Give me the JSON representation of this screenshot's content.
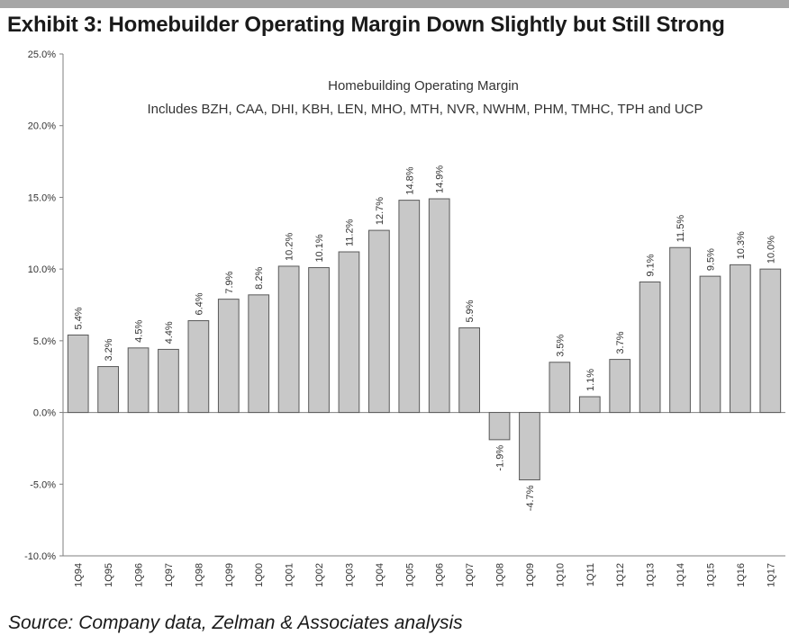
{
  "exhibit_title": "Exhibit 3: Homebuilder Operating Margin Down Slightly but Still Strong",
  "source_note": "Source: Company data, Zelman & Associates analysis",
  "colors": {
    "bar_fill": "#c8c8c8",
    "bar_stroke": "#595959",
    "top_band": "#a6a6a6"
  },
  "chart_data": {
    "type": "bar",
    "title": "Homebuilding Operating Margin",
    "subtitle": "Includes BZH, CAA, DHI, KBH, LEN, MHO, MTH, NVR, NWHM, PHM, TMHC, TPH and UCP",
    "xlabel": "",
    "ylabel": "",
    "ylim": [
      -10,
      25
    ],
    "yticks": [
      -10,
      -5,
      0,
      5,
      10,
      15,
      20,
      25
    ],
    "ytick_labels": [
      "-10.0%",
      "-5.0%",
      "0.0%",
      "5.0%",
      "10.0%",
      "15.0%",
      "20.0%",
      "25.0%"
    ],
    "categories": [
      "1Q94",
      "1Q95",
      "1Q96",
      "1Q97",
      "1Q98",
      "1Q99",
      "1Q00",
      "1Q01",
      "1Q02",
      "1Q03",
      "1Q04",
      "1Q05",
      "1Q06",
      "1Q07",
      "1Q08",
      "1Q09",
      "1Q10",
      "1Q11",
      "1Q12",
      "1Q13",
      "1Q14",
      "1Q15",
      "1Q16",
      "1Q17"
    ],
    "values": [
      5.4,
      3.2,
      4.5,
      4.4,
      6.4,
      7.9,
      8.2,
      10.2,
      10.1,
      11.2,
      12.7,
      14.8,
      14.9,
      5.9,
      -1.9,
      -4.7,
      3.5,
      1.1,
      3.7,
      9.1,
      11.5,
      9.5,
      10.3,
      10.0
    ],
    "data_labels": [
      "5.4%",
      "3.2%",
      "4.5%",
      "4.4%",
      "6.4%",
      "7.9%",
      "8.2%",
      "10.2%",
      "10.1%",
      "11.2%",
      "12.7%",
      "14.8%",
      "14.9%",
      "5.9%",
      "-1.9%",
      "-4.7%",
      "3.5%",
      "1.1%",
      "3.7%",
      "9.1%",
      "11.5%",
      "9.5%",
      "10.3%",
      "10.0%"
    ],
    "grid": false,
    "legend": "none"
  }
}
